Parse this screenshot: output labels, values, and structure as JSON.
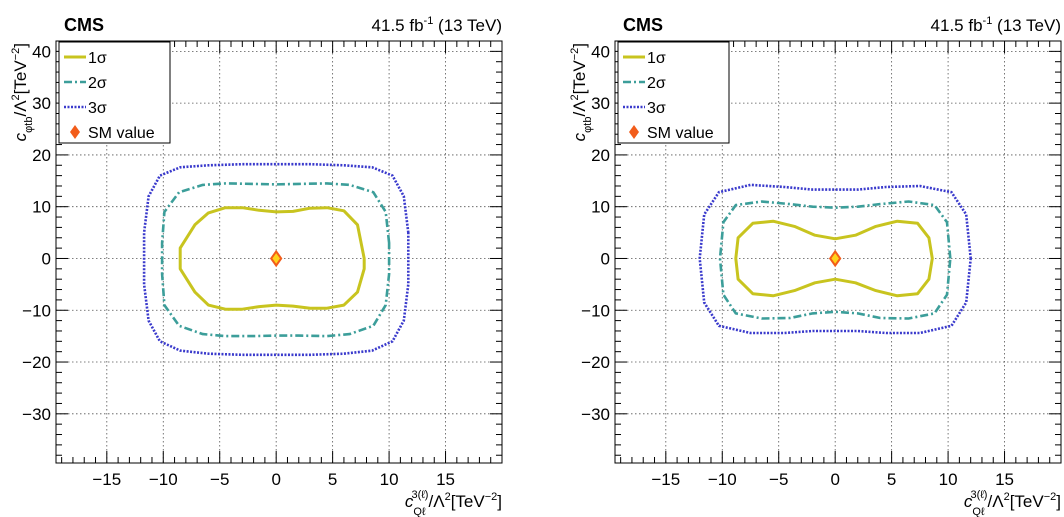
{
  "chart_data": [
    {
      "type": "line",
      "experiment": "CMS",
      "luminosity_prefix": "41.5 fb",
      "luminosity_exp": "-1",
      "luminosity_suffix": " (13 TeV)",
      "xlabel": "c_Qℓ^3(ℓ)/Λ²[TeV⁻²]",
      "ylabel": "c_φtb/Λ²[TeV⁻²]",
      "xlim": [
        -19.5,
        20
      ],
      "ylim": [
        -39.5,
        42
      ],
      "xticks": [
        -15,
        -10,
        -5,
        0,
        5,
        10,
        15
      ],
      "xtick_labels": [
        "−15",
        "−10",
        "−5",
        "0",
        "5",
        "10",
        "15"
      ],
      "yticks": [
        -30,
        -20,
        -10,
        0,
        10,
        20,
        30,
        40
      ],
      "ytick_labels": [
        "−30",
        "−20",
        "−10",
        "0",
        "10",
        "20",
        "30",
        "40"
      ],
      "grid": true,
      "legend_position": "top-left",
      "series": [
        {
          "name": "1σ",
          "color": "#c8c41f",
          "style": "solid",
          "x": [
            7.8,
            7.2,
            6,
            4.5,
            3,
            1.5,
            0,
            -1.5,
            -3,
            -4.5,
            -6,
            -7.2,
            -8.5,
            -8.5,
            -7.2,
            -6,
            -4.5,
            -3,
            -1.5,
            0,
            1.5,
            3,
            4.5,
            6,
            7.2,
            7.8,
            7.8
          ],
          "y": [
            0,
            6.5,
            9.2,
            9.8,
            9.7,
            9.1,
            9,
            9.3,
            9.8,
            9.8,
            8.8,
            6.5,
            2,
            -2,
            -6.5,
            -9,
            -9.8,
            -9.8,
            -9.3,
            -9,
            -9.2,
            -9.6,
            -9.6,
            -9,
            -6.5,
            -2,
            0
          ]
        },
        {
          "name": "2σ",
          "color": "#3c9e9a",
          "style": "dashdot",
          "x": [
            10,
            9.7,
            8.6,
            6.5,
            4.5,
            2,
            0,
            -2,
            -4.5,
            -6.5,
            -8.6,
            -9.9,
            -10.1,
            -10.1,
            -9.9,
            -8.6,
            -6.5,
            -4.5,
            -2,
            0,
            2,
            4.5,
            6.5,
            8.6,
            9.7,
            10,
            10
          ],
          "y": [
            3,
            9,
            12.8,
            14.2,
            14.5,
            14.4,
            14.3,
            14.4,
            14.5,
            14.2,
            12.8,
            9,
            3,
            -3,
            -9,
            -13,
            -14.6,
            -15,
            -15,
            -14.9,
            -14.9,
            -15,
            -14.6,
            -13,
            -9,
            -3,
            3
          ]
        },
        {
          "name": "3σ",
          "color": "#3a3acc",
          "style": "dotted",
          "x": [
            11.7,
            11.3,
            10.3,
            8.5,
            6,
            3,
            0,
            -3,
            -6,
            -8.5,
            -10.3,
            -11.3,
            -11.7,
            -11.7,
            -11.3,
            -10.3,
            -8.5,
            -6,
            -3,
            0,
            3,
            6,
            8.5,
            10.3,
            11.3,
            11.7,
            11.7
          ],
          "y": [
            5,
            12,
            16,
            17.6,
            18,
            18.2,
            18.2,
            18.2,
            18,
            17.6,
            16,
            12,
            5,
            -5,
            -12,
            -16,
            -17.8,
            -18.4,
            -18.6,
            -18.6,
            -18.6,
            -18.4,
            -17.8,
            -16,
            -12,
            -5,
            5
          ]
        }
      ],
      "sm_value": {
        "label": "SM value",
        "x": 0,
        "y": 0,
        "color": "#f25c1a"
      }
    },
    {
      "type": "line",
      "experiment": "CMS",
      "luminosity_prefix": "41.5 fb",
      "luminosity_exp": "-1",
      "luminosity_suffix": " (13 TeV)",
      "xlabel": "c_Qℓ^3(ℓ)/Λ²[TeV⁻²]",
      "ylabel": "c_φtb/Λ²[TeV⁻²]",
      "xlim": [
        -19.5,
        20
      ],
      "ylim": [
        -39.5,
        42
      ],
      "xticks": [
        -15,
        -10,
        -5,
        0,
        5,
        10,
        15
      ],
      "xtick_labels": [
        "−15",
        "−10",
        "−5",
        "0",
        "5",
        "10",
        "15"
      ],
      "yticks": [
        -30,
        -20,
        -10,
        0,
        10,
        20,
        30,
        40
      ],
      "ytick_labels": [
        "−30",
        "−20",
        "−10",
        "0",
        "10",
        "20",
        "30",
        "40"
      ],
      "grid": true,
      "legend_position": "top-left",
      "series": [
        {
          "name": "1σ",
          "color": "#c8c41f",
          "style": "solid",
          "x": [
            8.6,
            8.3,
            7.3,
            5.5,
            3.6,
            1.8,
            0,
            -1.8,
            -3.6,
            -5.5,
            -7.3,
            -8.6,
            -8.8,
            -8.6,
            -7.3,
            -5.5,
            -3.6,
            -1.8,
            0,
            1.8,
            3.6,
            5.5,
            7.3,
            8.3,
            8.6
          ],
          "y": [
            0,
            4,
            6.8,
            7.2,
            6.2,
            4.5,
            3.8,
            4.5,
            6.2,
            7.2,
            6.8,
            4,
            0,
            -4,
            -6.8,
            -7.2,
            -6.2,
            -4.7,
            -4,
            -4.7,
            -6.2,
            -7.2,
            -6.8,
            -4,
            0
          ]
        },
        {
          "name": "2σ",
          "color": "#3c9e9a",
          "style": "dashdot",
          "x": [
            10.2,
            9.9,
            8.8,
            6.5,
            4,
            2,
            0,
            -2,
            -4,
            -6.5,
            -8.8,
            -9.9,
            -10.2,
            -9.9,
            -8.8,
            -6.5,
            -4,
            -2,
            0,
            2,
            4,
            6.5,
            8.8,
            9.9,
            10.2
          ],
          "y": [
            0,
            7,
            10.3,
            11,
            10.5,
            10,
            9.8,
            10,
            10.5,
            11,
            10.3,
            7,
            0,
            -7,
            -10.6,
            -11.6,
            -11.5,
            -10.6,
            -10.3,
            -10.6,
            -11.5,
            -11.6,
            -10.6,
            -7,
            0
          ]
        },
        {
          "name": "3σ",
          "color": "#3a3acc",
          "style": "dotted",
          "x": [
            12,
            11.6,
            10.3,
            7.5,
            4.5,
            2,
            0,
            -2,
            -4.5,
            -7.5,
            -10.3,
            -11.6,
            -12,
            -11.6,
            -10.3,
            -7.5,
            -4.5,
            -2,
            0,
            2,
            4.5,
            7.5,
            10.3,
            11.6,
            12
          ],
          "y": [
            0,
            8.5,
            12.8,
            14,
            13.8,
            13.3,
            13.3,
            13.3,
            13.8,
            14.2,
            12.8,
            8.5,
            0,
            -8.5,
            -13,
            -14.4,
            -14.4,
            -14,
            -14,
            -14,
            -14.4,
            -14.4,
            -13,
            -8.5,
            0
          ]
        }
      ],
      "sm_value": {
        "label": "SM value",
        "x": 0,
        "y": 0,
        "color": "#f25c1a"
      }
    }
  ]
}
